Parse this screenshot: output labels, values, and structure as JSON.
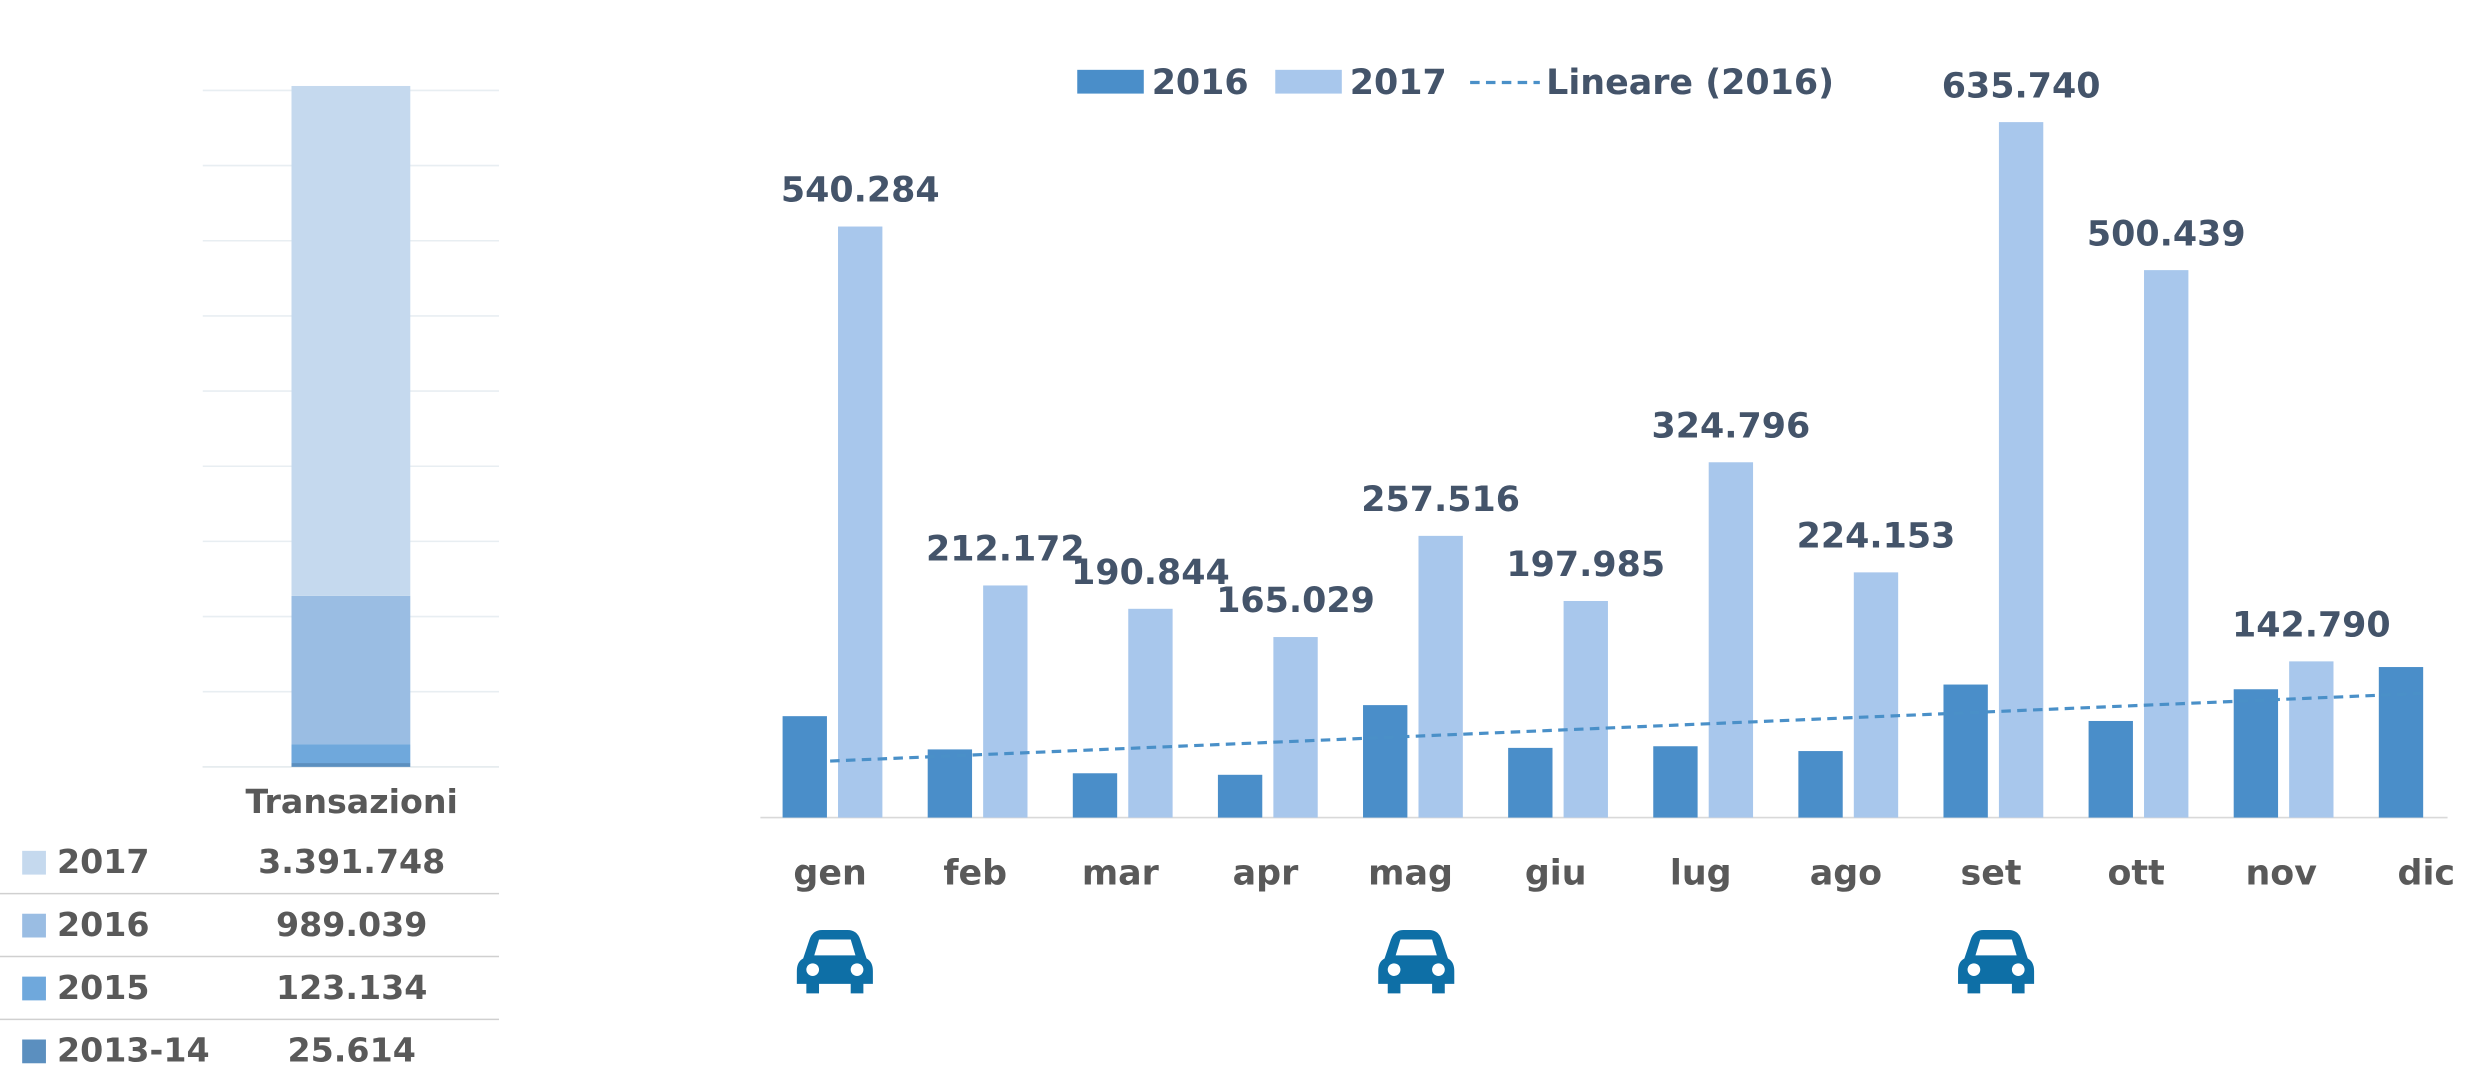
{
  "chart_data": [
    {
      "type": "stacked_bar",
      "categories": [
        "Transazioni"
      ],
      "series": [
        {
          "name": "2013-14",
          "color": "#5b8fbf",
          "values": [
            25614
          ],
          "value_labels": [
            "25.614"
          ]
        },
        {
          "name": "2015",
          "color": "#6fa8dc",
          "values": [
            123134
          ],
          "value_labels": [
            "123.134"
          ]
        },
        {
          "name": "2016",
          "color": "#9abde3",
          "values": [
            989039
          ],
          "value_labels": [
            "989.039"
          ]
        },
        {
          "name": "2017",
          "color": "#c5d9ee",
          "values": [
            3391748
          ],
          "value_labels": [
            "3.391.748"
          ]
        }
      ],
      "ylim": [
        0,
        4500000
      ],
      "yticks": [
        0,
        500000,
        1000000,
        1500000,
        2000000,
        2500000,
        3000000,
        3500000,
        4000000,
        4500000
      ],
      "grid": true
    },
    {
      "type": "bar",
      "categories": [
        "gen",
        "feb",
        "mar",
        "apr",
        "mag",
        "giu",
        "lug",
        "ago",
        "set",
        "ott",
        "nov",
        "dic"
      ],
      "series": [
        {
          "name": "2016",
          "color": "#4a8ec9",
          "values": [
            92700,
            62300,
            40500,
            39100,
            102800,
            63700,
            65200,
            60800,
            121600,
            88300,
            117300,
            137600
          ]
        },
        {
          "name": "2017",
          "color": "#a8c7ec",
          "values": [
            540284,
            212172,
            190844,
            165029,
            257516,
            197985,
            324796,
            224153,
            635740,
            500439,
            142790,
            null
          ],
          "value_labels": [
            "540.284",
            "212.172",
            "190.844",
            "165.029",
            "257.516",
            "197.985",
            "324.796",
            "224.153",
            "635.740",
            "500.439",
            "142.790",
            null
          ]
        }
      ],
      "trendline": {
        "name": "Lineare (2016)",
        "series": 0,
        "color": "#4a90c8"
      },
      "ylim": [
        0,
        635740
      ]
    }
  ]
}
